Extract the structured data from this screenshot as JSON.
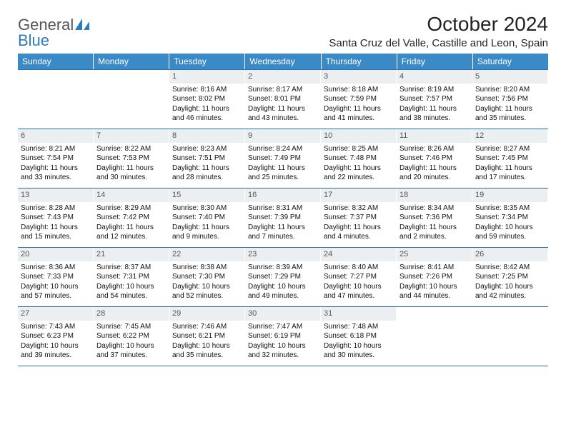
{
  "logo": {
    "line1": "General",
    "line2": "Blue"
  },
  "title": "October 2024",
  "location": "Santa Cruz del Valle, Castille and Leon, Spain",
  "colors": {
    "header_bg": "#3a8ac8",
    "header_fg": "#ffffff",
    "daynum_bg": "#eceff1",
    "border": "#2f6fa8",
    "logo_gray": "#555555",
    "logo_blue": "#2f7bbf"
  },
  "day_headers": [
    "Sunday",
    "Monday",
    "Tuesday",
    "Wednesday",
    "Thursday",
    "Friday",
    "Saturday"
  ],
  "weeks": [
    [
      {
        "n": "",
        "empty": true
      },
      {
        "n": "",
        "empty": true
      },
      {
        "n": "1",
        "sr": "8:16 AM",
        "ss": "8:02 PM",
        "dl": "11 hours and 46 minutes."
      },
      {
        "n": "2",
        "sr": "8:17 AM",
        "ss": "8:01 PM",
        "dl": "11 hours and 43 minutes."
      },
      {
        "n": "3",
        "sr": "8:18 AM",
        "ss": "7:59 PM",
        "dl": "11 hours and 41 minutes."
      },
      {
        "n": "4",
        "sr": "8:19 AM",
        "ss": "7:57 PM",
        "dl": "11 hours and 38 minutes."
      },
      {
        "n": "5",
        "sr": "8:20 AM",
        "ss": "7:56 PM",
        "dl": "11 hours and 35 minutes."
      }
    ],
    [
      {
        "n": "6",
        "sr": "8:21 AM",
        "ss": "7:54 PM",
        "dl": "11 hours and 33 minutes."
      },
      {
        "n": "7",
        "sr": "8:22 AM",
        "ss": "7:53 PM",
        "dl": "11 hours and 30 minutes."
      },
      {
        "n": "8",
        "sr": "8:23 AM",
        "ss": "7:51 PM",
        "dl": "11 hours and 28 minutes."
      },
      {
        "n": "9",
        "sr": "8:24 AM",
        "ss": "7:49 PM",
        "dl": "11 hours and 25 minutes."
      },
      {
        "n": "10",
        "sr": "8:25 AM",
        "ss": "7:48 PM",
        "dl": "11 hours and 22 minutes."
      },
      {
        "n": "11",
        "sr": "8:26 AM",
        "ss": "7:46 PM",
        "dl": "11 hours and 20 minutes."
      },
      {
        "n": "12",
        "sr": "8:27 AM",
        "ss": "7:45 PM",
        "dl": "11 hours and 17 minutes."
      }
    ],
    [
      {
        "n": "13",
        "sr": "8:28 AM",
        "ss": "7:43 PM",
        "dl": "11 hours and 15 minutes."
      },
      {
        "n": "14",
        "sr": "8:29 AM",
        "ss": "7:42 PM",
        "dl": "11 hours and 12 minutes."
      },
      {
        "n": "15",
        "sr": "8:30 AM",
        "ss": "7:40 PM",
        "dl": "11 hours and 9 minutes."
      },
      {
        "n": "16",
        "sr": "8:31 AM",
        "ss": "7:39 PM",
        "dl": "11 hours and 7 minutes."
      },
      {
        "n": "17",
        "sr": "8:32 AM",
        "ss": "7:37 PM",
        "dl": "11 hours and 4 minutes."
      },
      {
        "n": "18",
        "sr": "8:34 AM",
        "ss": "7:36 PM",
        "dl": "11 hours and 2 minutes."
      },
      {
        "n": "19",
        "sr": "8:35 AM",
        "ss": "7:34 PM",
        "dl": "10 hours and 59 minutes."
      }
    ],
    [
      {
        "n": "20",
        "sr": "8:36 AM",
        "ss": "7:33 PM",
        "dl": "10 hours and 57 minutes."
      },
      {
        "n": "21",
        "sr": "8:37 AM",
        "ss": "7:31 PM",
        "dl": "10 hours and 54 minutes."
      },
      {
        "n": "22",
        "sr": "8:38 AM",
        "ss": "7:30 PM",
        "dl": "10 hours and 52 minutes."
      },
      {
        "n": "23",
        "sr": "8:39 AM",
        "ss": "7:29 PM",
        "dl": "10 hours and 49 minutes."
      },
      {
        "n": "24",
        "sr": "8:40 AM",
        "ss": "7:27 PM",
        "dl": "10 hours and 47 minutes."
      },
      {
        "n": "25",
        "sr": "8:41 AM",
        "ss": "7:26 PM",
        "dl": "10 hours and 44 minutes."
      },
      {
        "n": "26",
        "sr": "8:42 AM",
        "ss": "7:25 PM",
        "dl": "10 hours and 42 minutes."
      }
    ],
    [
      {
        "n": "27",
        "sr": "7:43 AM",
        "ss": "6:23 PM",
        "dl": "10 hours and 39 minutes."
      },
      {
        "n": "28",
        "sr": "7:45 AM",
        "ss": "6:22 PM",
        "dl": "10 hours and 37 minutes."
      },
      {
        "n": "29",
        "sr": "7:46 AM",
        "ss": "6:21 PM",
        "dl": "10 hours and 35 minutes."
      },
      {
        "n": "30",
        "sr": "7:47 AM",
        "ss": "6:19 PM",
        "dl": "10 hours and 32 minutes."
      },
      {
        "n": "31",
        "sr": "7:48 AM",
        "ss": "6:18 PM",
        "dl": "10 hours and 30 minutes."
      },
      {
        "n": "",
        "empty": true
      },
      {
        "n": "",
        "empty": true
      }
    ]
  ],
  "labels": {
    "sunrise": "Sunrise:",
    "sunset": "Sunset:",
    "daylight": "Daylight:"
  }
}
